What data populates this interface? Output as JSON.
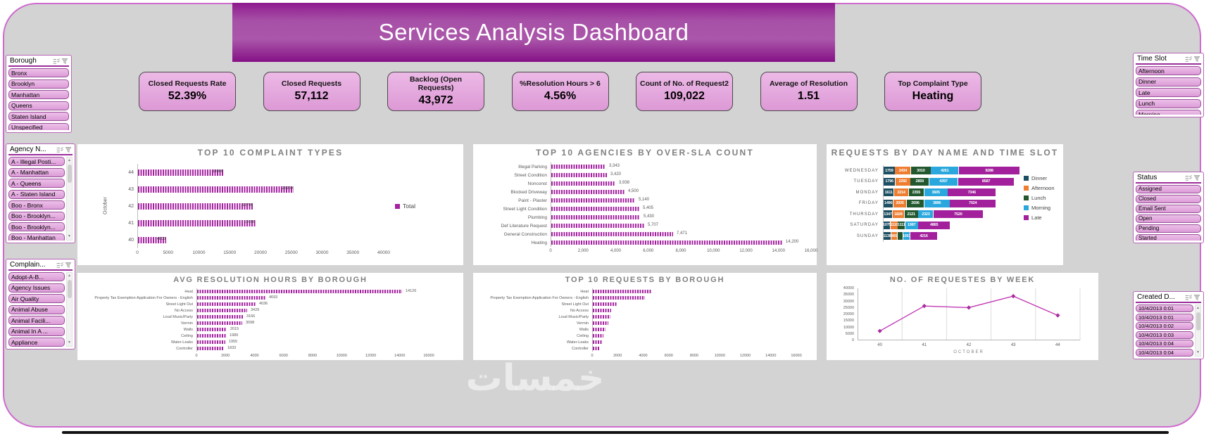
{
  "title": "Services Analysis Dashboard",
  "watermark": "خمسات",
  "colors": {
    "accent": "#a3239f",
    "banner_purple": "#9a2f9a",
    "frame_border": "#cf6bcf",
    "kpi_card": "#e2a3dc",
    "slicer_item": "#dfa2db",
    "series_dinner": "#1d4f63",
    "series_afternoon": "#ed7d31",
    "series_lunch": "#23582f",
    "series_morning": "#2aa8dd",
    "series_late": "#a2209c",
    "line_series": "#c13ab5"
  },
  "kpis": [
    {
      "label": "Closed Requests  Rate",
      "value": "52.39%"
    },
    {
      "label": "Closed Requests",
      "value": "57,112"
    },
    {
      "label": "Backlog (Open Requests)",
      "value": "43,972"
    },
    {
      "label": "%Resolution Hours > 6",
      "value": "4.56%"
    },
    {
      "label": "Count of No. of Request2",
      "value": "109,022"
    },
    {
      "label": "Average of Resolution",
      "value": "1.51"
    },
    {
      "label": "Top Complaint Type",
      "value": "Heating"
    }
  ],
  "slicers": {
    "borough": {
      "title": "Borough",
      "scrollbar": false,
      "items": [
        "Bronx",
        "Brooklyn",
        "Manhattan",
        "Queens",
        "Staten Island",
        "Unspecified"
      ]
    },
    "agency": {
      "title": "Agency N...",
      "scrollbar": true,
      "items": [
        "A - Illegal Posti...",
        "A - Manhattan",
        "A - Queens",
        "A - Staten Island",
        "Boo - Bronx",
        "Boo - Brooklyn...",
        "Boo - Brooklyn...",
        "Boo - Manhattan"
      ]
    },
    "complaint": {
      "title": "Complain...",
      "scrollbar": true,
      "clipped_item": true,
      "items": [
        "Adopt-A-B...",
        "Agency Issues",
        "Air Quality",
        "Animal Abuse",
        "Animal Facili...",
        "Animal In A ...",
        "Appliance"
      ]
    },
    "timeslot": {
      "title": "Time Slot",
      "scrollbar": false,
      "items": [
        "Afternoon",
        "Dinner",
        "Late",
        "Lunch",
        "Morning"
      ]
    },
    "status": {
      "title": "Status",
      "scrollbar": false,
      "items": [
        "Assigned",
        "Closed",
        "Email Sent",
        "Open",
        "Pending",
        "Started",
        "Unassigned"
      ]
    },
    "created": {
      "title": "Created D...",
      "scrollbar": true,
      "clipped_item": true,
      "items": [
        "10/4/2013 0:01",
        "10/4/2013 0:01",
        "10/4/2013 0:02",
        "10/4/2013 0:03",
        "10/4/2013 0:04",
        "10/4/2013 0:04",
        "10/4/2013 0:05"
      ]
    }
  },
  "chart_data": [
    {
      "id": "top-complaint-types",
      "type": "bar",
      "orientation": "horizontal",
      "title": "TOP 10 COMPLAINT TYPES",
      "categories": [
        "44",
        "43",
        "42",
        "41",
        "40"
      ],
      "values": [
        14000,
        25200,
        18700,
        19100,
        4600
      ],
      "labels": [
        "14000",
        "25200",
        "18700",
        "19100",
        "4600"
      ],
      "ylabel": "October",
      "legend": [
        "Total"
      ],
      "legend_position": "right",
      "xlim": [
        0,
        40000
      ],
      "xtick_labels": [
        "0",
        "5000",
        "10000",
        "15000",
        "20000",
        "25000",
        "30000",
        "35000",
        "40000"
      ],
      "grid": false
    },
    {
      "id": "top-agencies-by-over-sla",
      "type": "bar",
      "orientation": "horizontal",
      "title": "TOP 10 AGENCIES BY OVER-SLA COUNT",
      "categories": [
        "Illegal Parking",
        "Street Condition",
        "Nonconst",
        "Blocked Driveway",
        "Paint - Plaster",
        "Street Light Condition",
        "Plumbing",
        "Def Literature Request",
        "General Construction",
        "Heating"
      ],
      "values": [
        3343,
        3420,
        3938,
        4500,
        5140,
        5405,
        5430,
        5707,
        7471,
        14200
      ],
      "labels": [
        "3,343",
        "3,420",
        "3,938",
        "4,500",
        "5,140",
        "5,405",
        "5,430",
        "5,707",
        "7,471",
        "14,200"
      ],
      "xlim": [
        0,
        16000
      ],
      "xtick_labels": [
        "0",
        "2,000",
        "4,000",
        "6,000",
        "8,000",
        "10,000",
        "12,000",
        "14,000",
        "16,000"
      ],
      "grid": false
    },
    {
      "id": "requests-by-day-and-time-slot",
      "type": "stacked_bar",
      "orientation": "horizontal",
      "title": "REQUESTS BY DAY NAME AND TIME SLOT",
      "categories": [
        "WEDNESDAY",
        "TUESDAY",
        "MONDAY",
        "FRIDAY",
        "THURSDAY",
        "SATURDAY",
        "SUNDAY"
      ],
      "series": [
        {
          "name": "Dinner",
          "color": "#1d4f63",
          "values": [
            1759,
            1796,
            1611,
            1496,
            1347,
            1075,
            1138
          ]
        },
        {
          "name": "Afternoon",
          "color": "#ed7d31",
          "values": [
            2434,
            2292,
            2214,
            2005,
            1828,
            1110,
            965
          ]
        },
        {
          "name": "Lunch",
          "color": "#23582f",
          "values": [
            3010,
            2859,
            2355,
            2696,
            2121,
            1111,
            888
          ]
        },
        {
          "name": "Morning",
          "color": "#2aa8dd",
          "values": [
            4261,
            4397,
            3605,
            3896,
            2323,
            1987,
            1053
          ]
        },
        {
          "name": "Late",
          "color": "#a2209c",
          "values": [
            9288,
            8587,
            7346,
            7024,
            7520,
            4865,
            4216
          ]
        }
      ],
      "legend_position": "right",
      "xlim": [
        0,
        21000
      ],
      "grid": false
    },
    {
      "id": "avg-resolution-hours-by-borough",
      "type": "bar",
      "orientation": "horizontal",
      "title": "AVG RESOLUTION HOURS BY BOROUGH",
      "categories": [
        "Heat",
        "Property Tax Exemption Application For Owners - English",
        "Street Light Out",
        "No Access",
        "Loud Music/Party",
        "Vermin",
        "Walls",
        "Ceiling",
        "Water-Leaks",
        "Controller"
      ],
      "values": [
        14126,
        4693,
        4036,
        3429,
        3166,
        3098,
        2015,
        1989,
        1955,
        1833
      ],
      "labels": [
        "14126",
        "4693",
        "4036",
        "3429",
        "3166",
        "3098",
        "2015",
        "1989",
        "1955",
        "1833"
      ],
      "xlim": [
        0,
        16000
      ],
      "xtick_labels": [
        "0",
        "2000",
        "4000",
        "6000",
        "8000",
        "10000",
        "12000",
        "14000",
        "16000"
      ],
      "grid": false
    },
    {
      "id": "top-requests-by-borough",
      "type": "bar",
      "orientation": "horizontal",
      "title": "TOP 10 REQUESTS BY BOROUGH",
      "categories": [
        "Heat",
        "Property Tax Exemption Application For Owners - English",
        "Street Light Out",
        "No Access",
        "Loud Music/Party",
        "Vermin",
        "Walls",
        "Ceiling",
        "Water-Leaks",
        "Controller"
      ],
      "values": [
        4650,
        4100,
        1900,
        1450,
        1400,
        1200,
        1000,
        820,
        700,
        520
      ],
      "xlim": [
        0,
        16000
      ],
      "xtick_labels": [
        "0",
        "2000",
        "4000",
        "6000",
        "8000",
        "10000",
        "12000",
        "14000",
        "16000"
      ],
      "grid": false
    },
    {
      "id": "requests-by-week",
      "type": "line",
      "title": "NO. OF REQUESTES BY WEEK",
      "categories": [
        "40",
        "41",
        "42",
        "43",
        "44"
      ],
      "values": [
        7200,
        26400,
        25200,
        34000,
        19200
      ],
      "xlabel": "OCTOBER",
      "ylim": [
        0,
        40000
      ],
      "ytick_labels": [
        "40000",
        "35000",
        "30000",
        "25000",
        "20000",
        "15000",
        "10000",
        "5000",
        "0"
      ],
      "grid": true
    }
  ]
}
